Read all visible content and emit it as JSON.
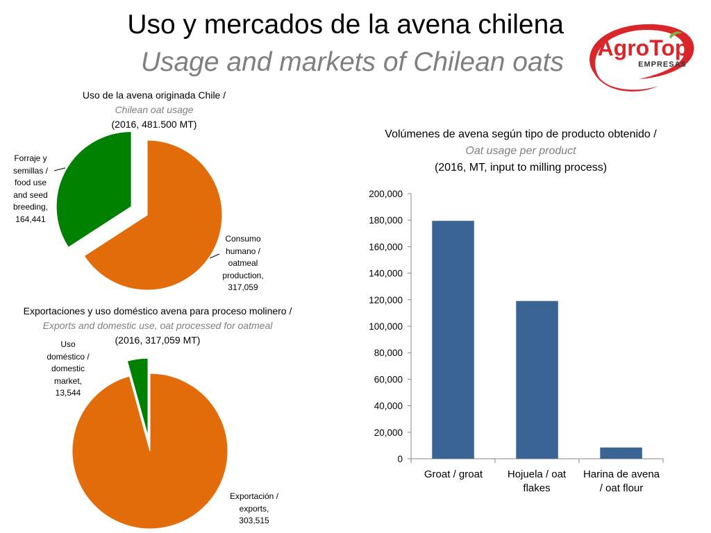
{
  "header": {
    "title_es": "Uso y mercados de la avena chilena",
    "title_en": "Usage and markets of Chilean oats"
  },
  "logo": {
    "brand_main": "AgroTop",
    "brand_sub": "EMPRESAS",
    "colors": {
      "red": "#d9262b",
      "green": "#7cb342"
    }
  },
  "colors": {
    "orange": "#e36c0a",
    "green": "#008000",
    "bar": "#3a6494"
  },
  "chart_data": [
    {
      "type": "pie",
      "title": "Uso de la avena originada Chile /",
      "subtitle": "Chilean oat usage",
      "note": "(2016, 481.500 MT)",
      "slices": [
        {
          "label": "Forraje y semillas / food use and seed breeding, 164,441",
          "value": 164441,
          "color": "#008000",
          "exploded": true
        },
        {
          "label": "Consumo humano / oatmeal production, 317,059",
          "value": 317059,
          "color": "#e36c0a",
          "exploded": false
        }
      ],
      "label_lines": [
        [
          "Forraje y",
          "semillas /",
          "food use",
          "and seed",
          "breeding,",
          "164,441"
        ],
        [
          "Consumo",
          "humano /",
          "oatmeal",
          "production,",
          "317,059"
        ]
      ]
    },
    {
      "type": "pie",
      "title": "Exportaciones y uso doméstico avena para proceso molinero /",
      "subtitle": "Exports and domestic use, oat processed for oatmeal",
      "note": "(2016, 317,059 MT)",
      "slices": [
        {
          "label": "Uso doméstico / domestic market, 13,544",
          "value": 13544,
          "color": "#008000",
          "exploded": true
        },
        {
          "label": "Exportación / exports, 303,515",
          "value": 303515,
          "color": "#e36c0a",
          "exploded": false
        }
      ],
      "label_lines": [
        [
          "Uso",
          "doméstico /",
          "domestic",
          "market,",
          "13,544"
        ],
        [
          "Exportación /",
          "exports,",
          "303,515"
        ]
      ]
    },
    {
      "type": "bar",
      "title": "Volúmenes de avena según tipo de producto obtenido /",
      "subtitle": "Oat usage per product",
      "note": "(2016, MT, input to milling process)",
      "categories": [
        "Groat / groat",
        "Hojuela / oat flakes",
        "Harina de avena / oat flour"
      ],
      "category_lines": [
        [
          "Groat / groat"
        ],
        [
          "Hojuela / oat",
          "flakes"
        ],
        [
          "Harina de avena",
          "/ oat flour"
        ]
      ],
      "values": [
        179500,
        119000,
        8500
      ],
      "ylim": [
        0,
        200000
      ],
      "yticks": [
        0,
        20000,
        40000,
        60000,
        80000,
        100000,
        120000,
        140000,
        160000,
        180000,
        200000
      ],
      "ytick_labels": [
        "0",
        "20,000",
        "40,000",
        "60,000",
        "80,000",
        "100,000",
        "120,000",
        "140,000",
        "160,000",
        "180,000",
        "200,000"
      ],
      "color": "#3a6494",
      "grid": false
    }
  ]
}
